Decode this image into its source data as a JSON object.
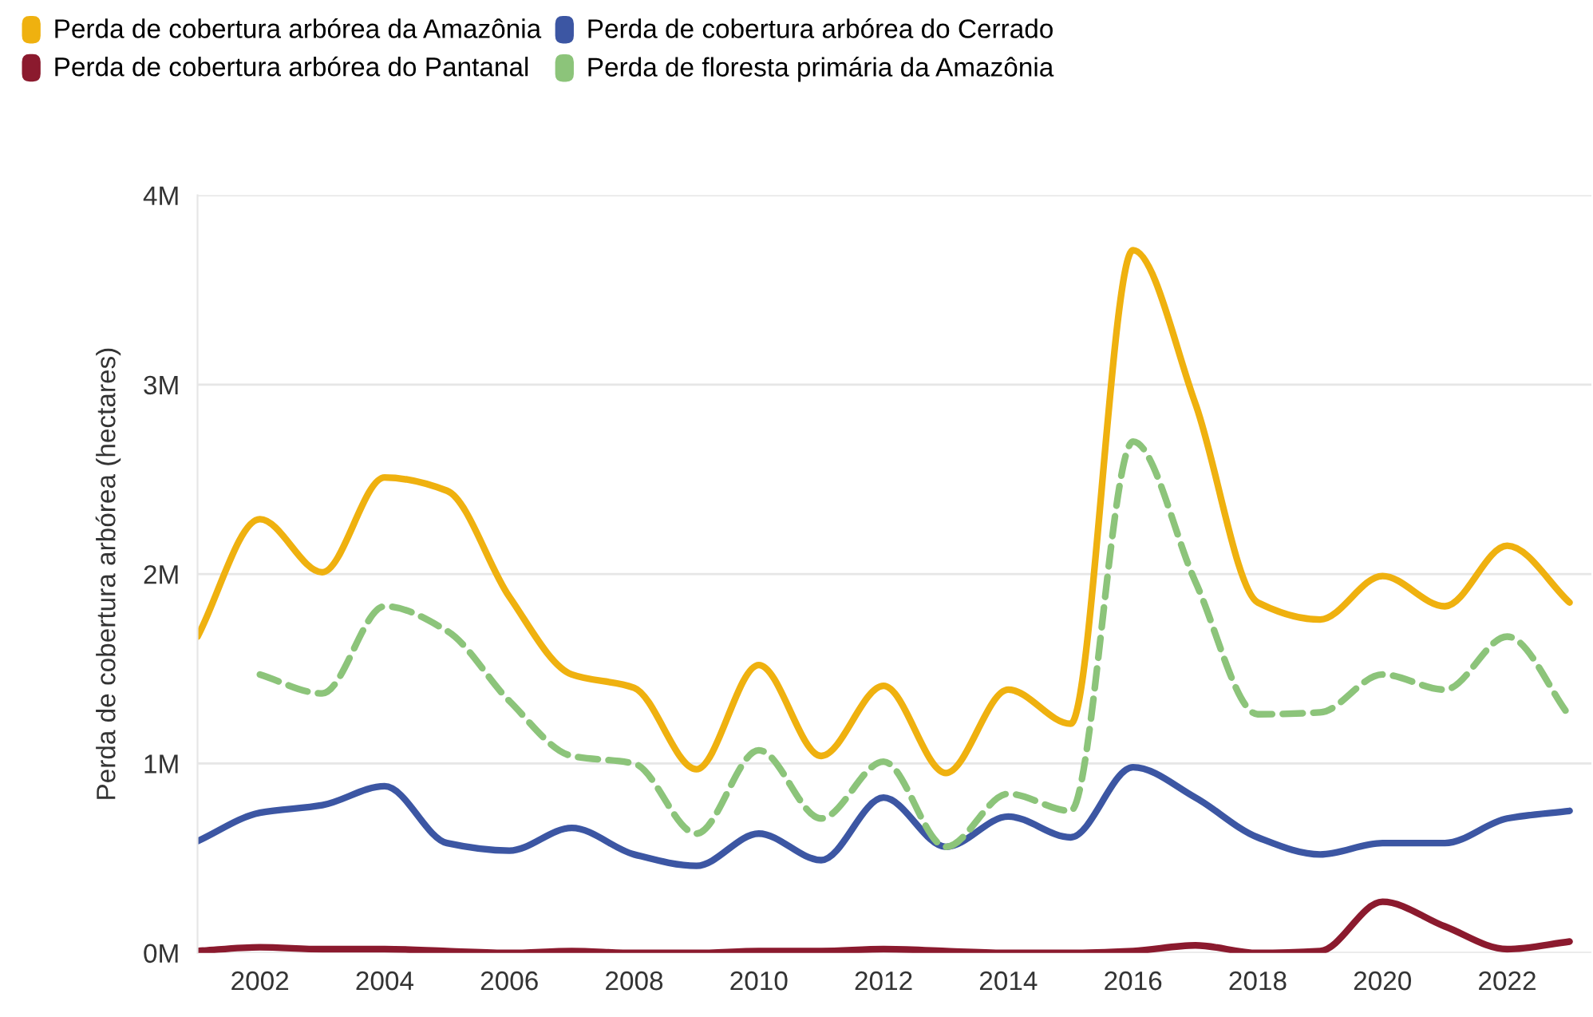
{
  "chart_data": {
    "type": "line",
    "ylabel": "Perda de cobertura arbórea (hectares)",
    "x": [
      2001,
      2002,
      2003,
      2004,
      2005,
      2006,
      2007,
      2008,
      2009,
      2010,
      2011,
      2012,
      2013,
      2014,
      2015,
      2016,
      2017,
      2018,
      2019,
      2020,
      2021,
      2022,
      2023
    ],
    "xlim": [
      2001,
      2023.35
    ],
    "xticks": [
      2002,
      2004,
      2006,
      2008,
      2010,
      2012,
      2014,
      2016,
      2018,
      2020,
      2022
    ],
    "ylim": [
      0,
      4
    ],
    "yticks": [
      {
        "value": 0,
        "label": "0M"
      },
      {
        "value": 1,
        "label": "1M"
      },
      {
        "value": 2,
        "label": "2M"
      },
      {
        "value": 3,
        "label": "3M"
      },
      {
        "value": 4,
        "label": "4M"
      }
    ],
    "grid": "y",
    "legend": "top left",
    "marker": "none",
    "series": [
      {
        "name": "Perda de cobertura arbórea da Amazônia",
        "color": "#efb10f",
        "line_style": "solid",
        "values": [
          1.67,
          2.29,
          2.01,
          2.51,
          2.44,
          1.88,
          1.47,
          1.4,
          0.97,
          1.52,
          1.04,
          1.41,
          0.95,
          1.39,
          1.21,
          3.71,
          2.9,
          1.85,
          1.76,
          1.99,
          1.83,
          2.15,
          1.85
        ]
      },
      {
        "name": "Perda de cobertura arbórea do Cerrado",
        "color": "#3c56a3",
        "line_style": "solid",
        "values": [
          0.59,
          0.74,
          0.78,
          0.88,
          0.58,
          0.54,
          0.66,
          0.52,
          0.46,
          0.63,
          0.49,
          0.82,
          0.56,
          0.72,
          0.61,
          0.98,
          0.82,
          0.61,
          0.52,
          0.58,
          0.58,
          0.71,
          0.75
        ]
      },
      {
        "name": "Perda de cobertura arbórea do Pantanal",
        "color": "#8b1a2e",
        "line_style": "solid",
        "values": [
          0.01,
          0.03,
          0.02,
          0.02,
          0.01,
          0.0,
          0.01,
          0.0,
          0.0,
          0.01,
          0.01,
          0.02,
          0.01,
          0.0,
          0.0,
          0.01,
          0.04,
          0.0,
          0.01,
          0.27,
          0.14,
          0.02,
          0.06
        ]
      },
      {
        "name": "Perda de floresta primária da Amazônia",
        "color": "#8cc47a",
        "line_style": "dashed",
        "values": [
          null,
          1.47,
          1.37,
          1.83,
          1.7,
          1.33,
          1.04,
          1.0,
          0.63,
          1.07,
          0.71,
          1.01,
          0.56,
          0.84,
          0.75,
          2.7,
          1.96,
          1.26,
          1.27,
          1.47,
          1.39,
          1.67,
          1.25
        ]
      }
    ]
  }
}
